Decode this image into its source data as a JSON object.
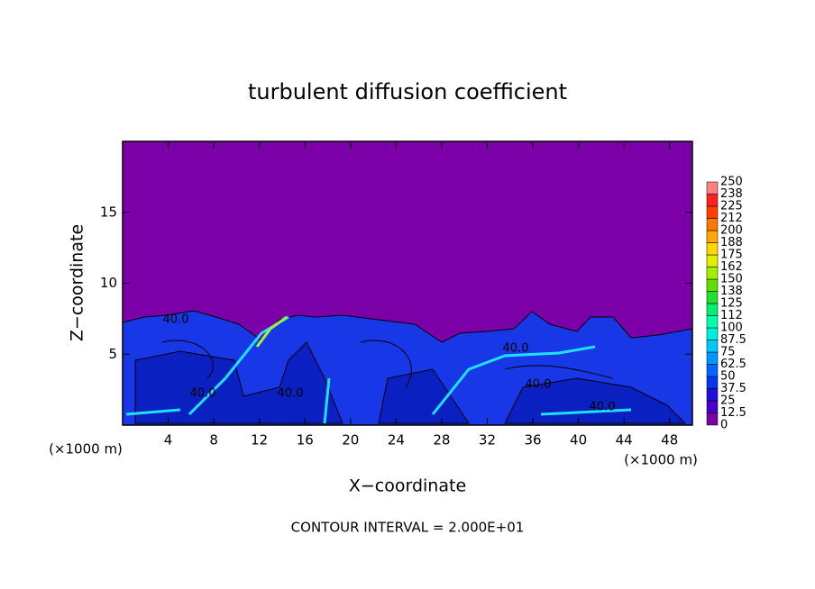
{
  "chart_data": {
    "type": "contour",
    "title": "turbulent diffusion coefficient",
    "xlabel": "X−coordinate",
    "ylabel": "Z−coordinate",
    "x_unit": "(×1000 m)",
    "note": "CONTOUR INTERVAL = 2.000E+01",
    "contour_label": "40.0",
    "xlim": [
      0,
      50
    ],
    "xticks": [
      4,
      8,
      12,
      16,
      20,
      24,
      28,
      32,
      36,
      40,
      44,
      48
    ],
    "ylim": [
      0,
      20
    ],
    "yticks": [
      5,
      10,
      15
    ],
    "colorbar_levels": [
      0,
      12.5,
      25,
      37.5,
      50,
      62.5,
      75,
      87.5,
      100,
      112,
      125,
      138,
      150,
      162,
      175,
      188,
      200,
      212,
      225,
      238,
      250
    ],
    "colorbar_colors": [
      "#7a00a8",
      "#4a00c8",
      "#2010d8",
      "#0038f0",
      "#0068ff",
      "#0098ff",
      "#00c8ff",
      "#00f0e0",
      "#00ffa8",
      "#00f070",
      "#20e030",
      "#60e000",
      "#a0f000",
      "#e0f000",
      "#ffd800",
      "#ffa800",
      "#ff7800",
      "#ff4000",
      "#ff2020",
      "#ff8080"
    ]
  }
}
